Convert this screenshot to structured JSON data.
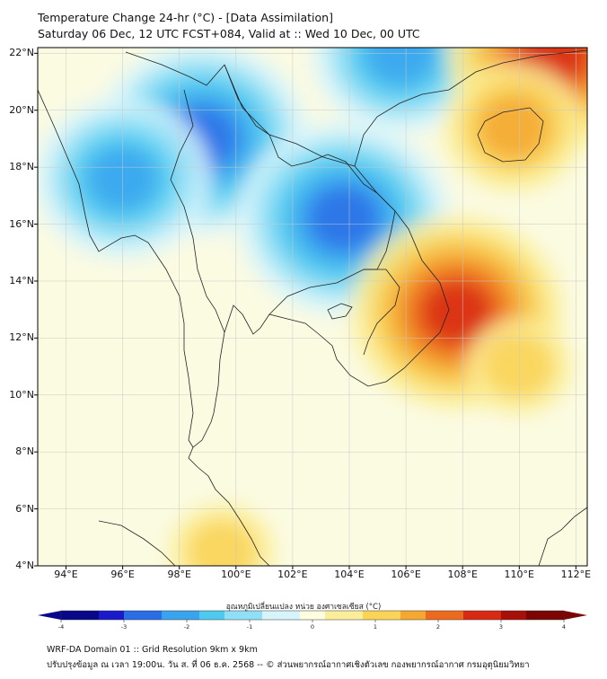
{
  "header": {
    "title": "Temperature Change 24-hr (°C) - [Data Assimilation]",
    "subtitle": "Saturday 06 Dec, 12 UTC FCST+084, Valid at :: Wed 10 Dec, 00 UTC"
  },
  "map": {
    "lat_labels": [
      "22°N",
      "20°N",
      "18°N",
      "16°N",
      "14°N",
      "12°N",
      "10°N",
      "8°N",
      "6°N",
      "4°N"
    ],
    "lon_labels": [
      "94°E",
      "96°E",
      "98°E",
      "100°E",
      "102°E",
      "104°E",
      "106°E",
      "108°E",
      "110°E",
      "112°E"
    ],
    "lat_range": [
      4,
      22.2
    ],
    "lon_range": [
      93,
      112.4
    ],
    "field_anomalies": [
      {
        "name": "cold-myanmar-north",
        "lon": 98.8,
        "lat": 19.0,
        "value": -2.4
      },
      {
        "name": "cold-myanmar-west",
        "lon": 96.0,
        "lat": 17.6,
        "value": -2.0
      },
      {
        "name": "cold-laos-thailand-ne",
        "lon": 103.8,
        "lat": 16.2,
        "value": -2.3
      },
      {
        "name": "cold-gulf-vietnam-north",
        "lon": 105.8,
        "lat": 22.0,
        "value": -2.2
      },
      {
        "name": "warm-central-highlands",
        "lon": 107.8,
        "lat": 12.9,
        "value": 2.7
      },
      {
        "name": "warm-china-coast",
        "lon": 111.2,
        "lat": 22.0,
        "value": 2.4
      },
      {
        "name": "warm-hainan",
        "lon": 109.8,
        "lat": 19.4,
        "value": 1.3
      },
      {
        "name": "warm-south-sea",
        "lon": 110.0,
        "lat": 11.0,
        "value": 0.8
      },
      {
        "name": "warm-sumatra",
        "lon": 99.5,
        "lat": 4.5,
        "value": 0.8
      }
    ]
  },
  "colorbar": {
    "title": "อุณหภูมิเปลี่ยนแปลง หน่วย องศาเซลเซียส (°C)",
    "range": [
      -4,
      4
    ],
    "ticks": [
      "-4",
      "-3",
      "-2",
      "-1",
      "0",
      "1",
      "2",
      "3",
      "4"
    ],
    "colors": [
      "#08088a",
      "#1a1acc",
      "#2a6ee6",
      "#3aa3ee",
      "#4ec9f0",
      "#8fe0f6",
      "#d8f4fb",
      "#fdfde0",
      "#fbee9a",
      "#f9d456",
      "#f5a830",
      "#ec6a1e",
      "#d82a12",
      "#a80f08",
      "#7a0504"
    ]
  },
  "footer": {
    "line1": "WRF-DA Domain 01 :: Grid Resolution 9km x 9km",
    "line2": "ปรับปรุงข้อมูล ณ เวลา 19:00น. วัน ส. ที่ 06 ธ.ค. 2568 -- © ส่วนพยากรณ์อากาศเชิงตัวเลข กองพยากรณ์อากาศ กรมอุตุนิยมวิทยา"
  }
}
